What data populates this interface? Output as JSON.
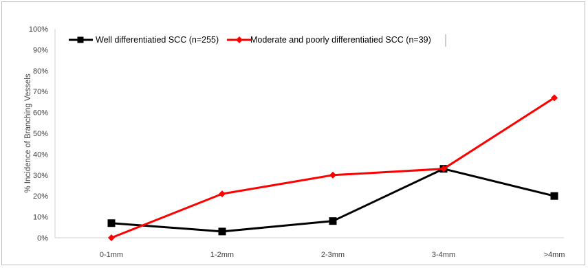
{
  "chart_data": {
    "type": "line",
    "title": "",
    "xlabel": "",
    "ylabel": "% Incidence of Branching Vessels",
    "categories": [
      "0-1mm",
      "1-2mm",
      "2-3mm",
      "3-4mm",
      ">4mm"
    ],
    "ylim": [
      0,
      100
    ],
    "yticks": [
      "0%",
      "10%",
      "20%",
      "30%",
      "40%",
      "50%",
      "60%",
      "70%",
      "80%",
      "90%",
      "100%"
    ],
    "grid": false,
    "legend_position": "top",
    "series": [
      {
        "name": "Well differentiatied SCC (n=255)",
        "values": [
          7,
          3,
          8,
          33,
          20
        ],
        "color": "#000000",
        "marker": "square"
      },
      {
        "name": "Moderate and poorly differentiatied SCC (n=39)",
        "values": [
          0,
          21,
          30,
          33,
          67
        ],
        "color": "#ff0000",
        "marker": "diamond"
      }
    ]
  }
}
